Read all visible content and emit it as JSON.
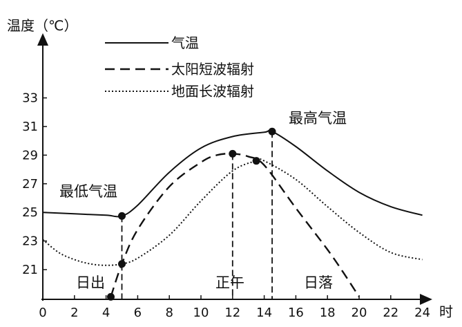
{
  "chart_data": {
    "type": "line",
    "title": "",
    "ylabel": "温度（℃）",
    "xlabel": "时",
    "xlim": [
      0,
      24
    ],
    "ylim": [
      19,
      35
    ],
    "x_ticks": [
      "0",
      "2",
      "4",
      "6",
      "8",
      "10",
      "12",
      "14",
      "16",
      "18",
      "20",
      "22",
      "24"
    ],
    "y_ticks": [
      "21",
      "23",
      "25",
      "27",
      "29",
      "31",
      "33"
    ],
    "grid": false,
    "legend_position": "top-left",
    "series": [
      {
        "name": "气温",
        "style": "solid",
        "x": [
          0,
          2,
          4,
          5,
          6,
          8,
          10,
          12,
          14,
          14.5,
          16,
          18,
          20,
          22,
          24
        ],
        "y": [
          25.0,
          24.9,
          24.8,
          24.75,
          25.5,
          27.8,
          29.5,
          30.3,
          30.6,
          30.65,
          29.6,
          27.9,
          26.4,
          25.4,
          24.8
        ]
      },
      {
        "name": "太阳短波辐射",
        "style": "dashed",
        "x": [
          4.3,
          5,
          6,
          8,
          10,
          11,
          12,
          13,
          14,
          16,
          18,
          19,
          20
        ],
        "y": [
          19.1,
          21.4,
          23.8,
          26.8,
          28.5,
          29.0,
          29.1,
          28.9,
          28.3,
          25.3,
          22.4,
          20.8,
          19.1
        ]
      },
      {
        "name": "地面长波辐射",
        "style": "dotted",
        "x": [
          0,
          1,
          2,
          3,
          4,
          5,
          6,
          8,
          10,
          12,
          13.5,
          14,
          16,
          18,
          20,
          22,
          24
        ],
        "y": [
          23.1,
          22.2,
          21.7,
          21.4,
          21.3,
          21.4,
          21.8,
          23.4,
          25.8,
          27.9,
          28.6,
          28.6,
          27.3,
          25.4,
          23.6,
          22.2,
          21.7
        ]
      }
    ],
    "points": [
      {
        "x": 4.3,
        "y": 19.1
      },
      {
        "x": 5,
        "y": 21.4
      },
      {
        "x": 5,
        "y": 24.75
      },
      {
        "x": 12,
        "y": 29.1
      },
      {
        "x": 13.5,
        "y": 28.6
      },
      {
        "x": 14.5,
        "y": 30.65
      }
    ],
    "annotations": {
      "min_temp": "最低气温",
      "max_temp": "最高气温",
      "sunrise": "日出",
      "noon": "正午",
      "sunset": "日落"
    }
  }
}
